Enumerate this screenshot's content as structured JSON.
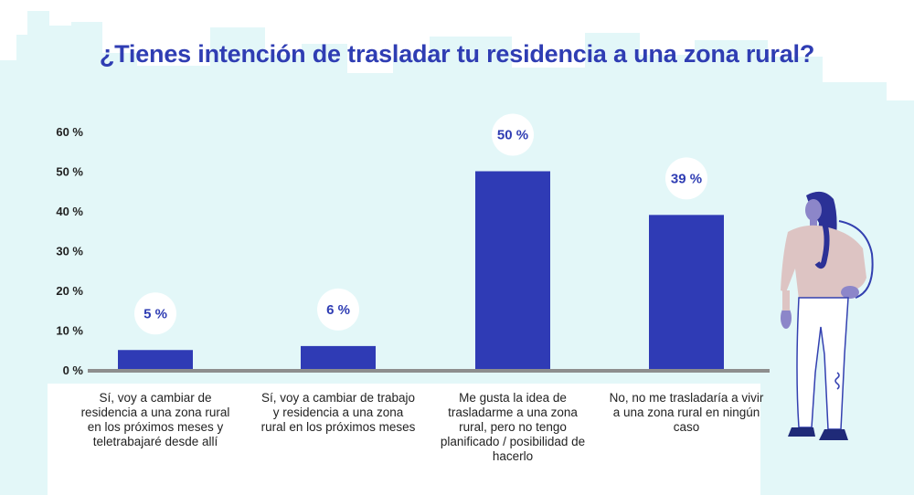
{
  "chart_data": {
    "type": "bar",
    "title": "¿Tienes intención de trasladar tu residencia a una zona rural?",
    "categories": [
      "Sí, voy a cambiar de residencia a una zona rural en los próximos meses y teletrabajaré desde allí",
      "Sí, voy a cambiar de trabajo y residencia a una zona rural en los próximos meses",
      "Me gusta la idea de trasladarme a una zona rural, pero no tengo planificado / posibilidad de hacerlo",
      "No, no me trasladaría a vivir a una zona rural en ningún caso"
    ],
    "values": [
      5,
      6,
      50,
      39
    ],
    "data_labels": [
      "5 %",
      "6 %",
      "50 %",
      "39 %"
    ],
    "y_ticks": [
      0,
      10,
      20,
      30,
      40,
      50,
      60
    ],
    "y_tick_labels": [
      "0 %",
      "10 %",
      "20 %",
      "30 %",
      "40 %",
      "50 %",
      "60 %"
    ],
    "ylim": [
      0,
      60
    ],
    "xlabel": "",
    "ylabel": "",
    "grid": false,
    "legend": "none",
    "colors": {
      "bar": "#2f3bb5",
      "title": "#2f3db3",
      "baseline": "#8e8e8e",
      "background_shape": "#e3f7f8",
      "label_bubble": "#ffffff"
    }
  },
  "decor": {
    "background": "cityscape-silhouette",
    "illustration": "standing-woman-illustration"
  }
}
